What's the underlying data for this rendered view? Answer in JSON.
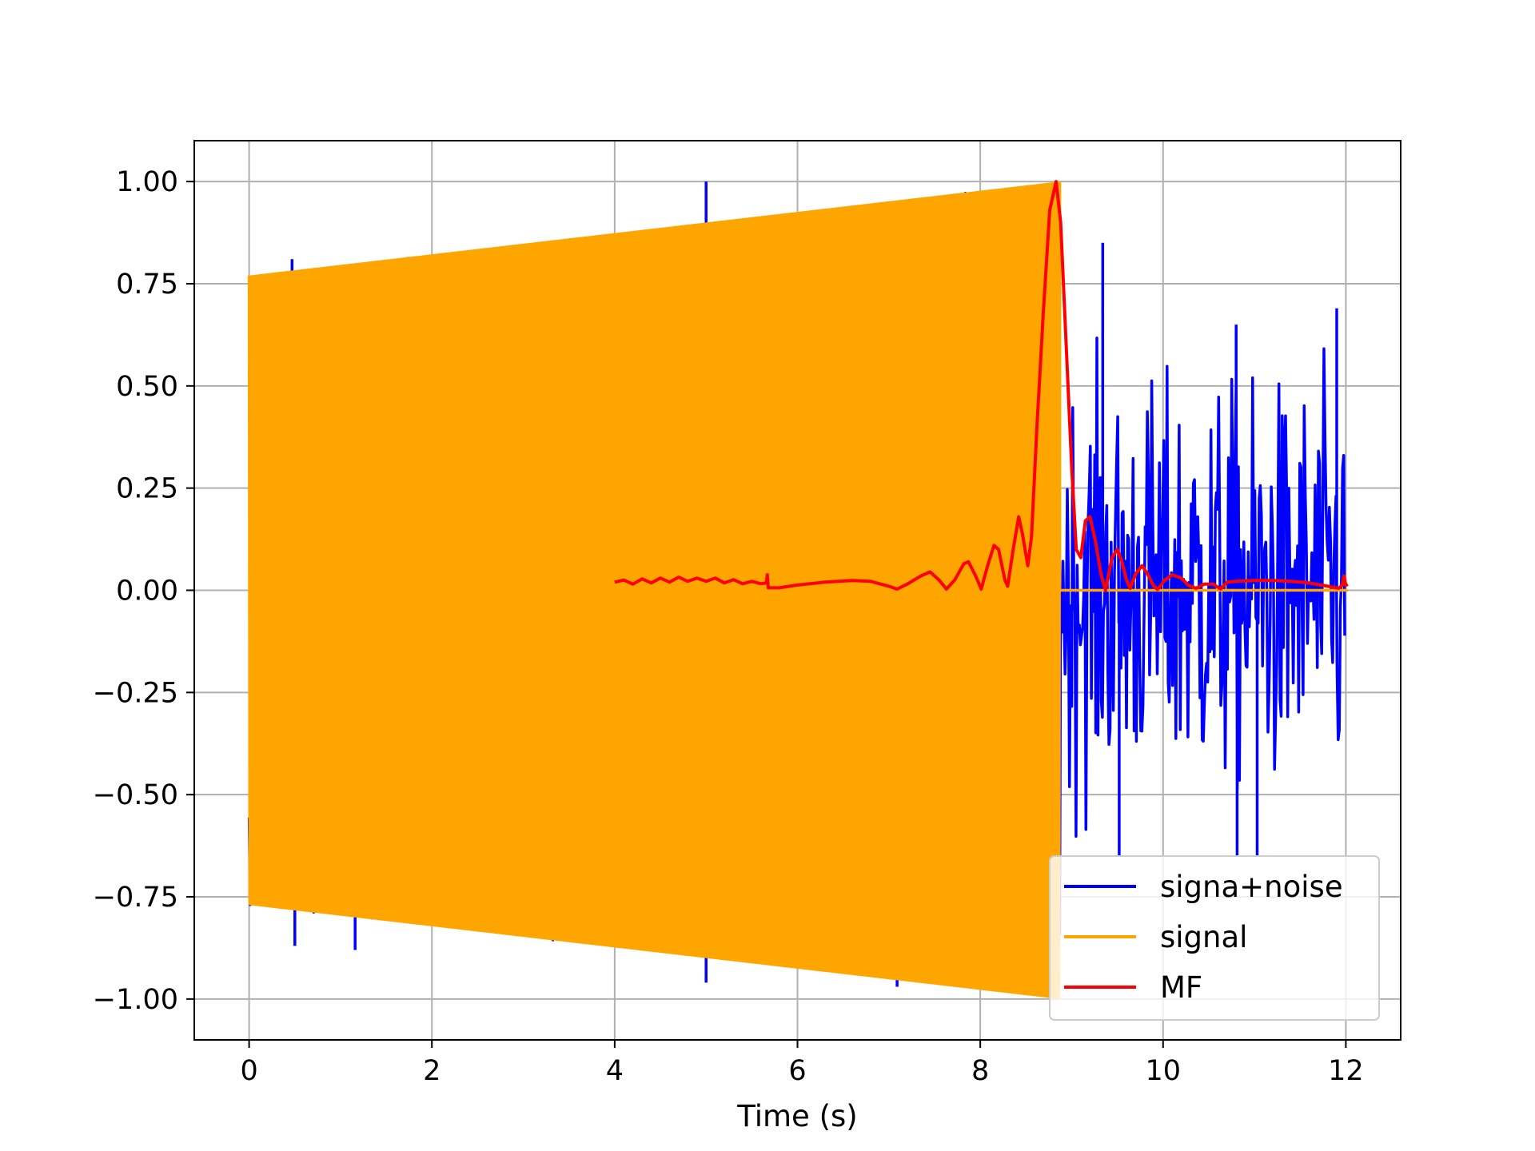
{
  "chart_data": {
    "type": "line",
    "xlabel": "Time (s)",
    "ylabel": "",
    "xlim": [
      -0.6,
      12.6
    ],
    "ylim": [
      -1.1,
      1.1
    ],
    "x_ticks": [
      0,
      2,
      4,
      6,
      8,
      10,
      12
    ],
    "x_tick_labels": [
      "0",
      "2",
      "4",
      "6",
      "8",
      "10",
      "12"
    ],
    "y_ticks": [
      1.0,
      0.75,
      0.5,
      0.25,
      0.0,
      -0.25,
      -0.5,
      -0.75,
      -1.0
    ],
    "y_tick_labels": [
      "1.00",
      "0.75",
      "0.50",
      "0.25",
      "0.00",
      "−0.25",
      "−0.50",
      "−0.75",
      "−1.00"
    ],
    "grid": true,
    "legend_position": "lower-right",
    "colors": {
      "noisy": "#0000ff",
      "signal": "#ffa500",
      "mf": "#ff0000",
      "grid": "#b0b0b0"
    },
    "series": [
      {
        "name": "signa+noise",
        "color": "#0000ff",
        "description_values": {
          "t_range": [
            0,
            12
          ],
          "noise_only_after": 8.87,
          "noise_envelope": [
            -0.72,
            0.72
          ],
          "spikes": [
            {
              "x": 0.47,
              "y": 0.81
            },
            {
              "x": 0.5,
              "y": -0.87
            },
            {
              "x": 1.16,
              "y": -0.88
            },
            {
              "x": 5.0,
              "y": 1.0
            },
            {
              "x": 5.0,
              "y": -0.96
            },
            {
              "x": 7.09,
              "y": -0.97
            },
            {
              "x": 9.34,
              "y": 0.85
            },
            {
              "x": 10.8,
              "y": 0.65
            },
            {
              "x": 11.9,
              "y": 0.69
            },
            {
              "x": 9.52,
              "y": -0.65
            },
            {
              "x": 10.81,
              "y": -0.65
            },
            {
              "x": 11.03,
              "y": -0.65
            }
          ]
        }
      },
      {
        "name": "signal",
        "color": "#ffa500",
        "description_values": {
          "t_start": 0,
          "t_end": 8.87,
          "amplitude_start": 0.77,
          "amplitude_end": 1.0,
          "after_end": 0.0
        }
      },
      {
        "name": "MF",
        "color": "#ff0000",
        "points": [
          [
            4.0,
            0.02
          ],
          [
            4.1,
            0.025
          ],
          [
            4.2,
            0.015
          ],
          [
            4.3,
            0.028
          ],
          [
            4.4,
            0.018
          ],
          [
            4.5,
            0.03
          ],
          [
            4.6,
            0.02
          ],
          [
            4.7,
            0.032
          ],
          [
            4.8,
            0.022
          ],
          [
            4.9,
            0.03
          ],
          [
            5.0,
            0.022
          ],
          [
            5.1,
            0.03
          ],
          [
            5.2,
            0.018
          ],
          [
            5.3,
            0.026
          ],
          [
            5.4,
            0.016
          ],
          [
            5.5,
            0.022
          ],
          [
            5.6,
            0.016
          ],
          [
            5.66,
            0.018
          ],
          [
            5.67,
            0.038
          ],
          [
            5.68,
            0.006
          ],
          [
            5.8,
            0.006
          ],
          [
            6.0,
            0.013
          ],
          [
            6.3,
            0.02
          ],
          [
            6.6,
            0.024
          ],
          [
            6.8,
            0.022
          ],
          [
            7.0,
            0.01
          ],
          [
            7.09,
            0.003
          ],
          [
            7.2,
            0.015
          ],
          [
            7.35,
            0.035
          ],
          [
            7.45,
            0.045
          ],
          [
            7.55,
            0.025
          ],
          [
            7.63,
            0.003
          ],
          [
            7.72,
            0.025
          ],
          [
            7.82,
            0.065
          ],
          [
            7.87,
            0.07
          ],
          [
            7.95,
            0.035
          ],
          [
            8.01,
            0.003
          ],
          [
            8.08,
            0.06
          ],
          [
            8.15,
            0.11
          ],
          [
            8.2,
            0.1
          ],
          [
            8.27,
            0.025
          ],
          [
            8.3,
            0.01
          ],
          [
            8.36,
            0.1
          ],
          [
            8.42,
            0.18
          ],
          [
            8.46,
            0.14
          ],
          [
            8.52,
            0.06
          ],
          [
            8.56,
            0.13
          ],
          [
            8.62,
            0.4
          ],
          [
            8.69,
            0.68
          ],
          [
            8.76,
            0.93
          ],
          [
            8.83,
            1.0
          ],
          [
            8.88,
            0.9
          ],
          [
            8.94,
            0.6
          ],
          [
            9.0,
            0.3
          ],
          [
            9.05,
            0.1
          ],
          [
            9.1,
            0.08
          ],
          [
            9.15,
            0.17
          ],
          [
            9.2,
            0.18
          ],
          [
            9.26,
            0.12
          ],
          [
            9.32,
            0.04
          ],
          [
            9.37,
            0.0
          ],
          [
            9.44,
            0.08
          ],
          [
            9.5,
            0.1
          ],
          [
            9.55,
            0.07
          ],
          [
            9.6,
            0.025
          ],
          [
            9.64,
            0.005
          ],
          [
            9.7,
            0.04
          ],
          [
            9.77,
            0.06
          ],
          [
            9.83,
            0.04
          ],
          [
            9.9,
            0.01
          ],
          [
            9.94,
            0.002
          ],
          [
            10.02,
            0.025
          ],
          [
            10.1,
            0.038
          ],
          [
            10.2,
            0.03
          ],
          [
            10.28,
            0.012
          ],
          [
            10.36,
            0.005
          ],
          [
            10.45,
            0.015
          ],
          [
            10.55,
            0.015
          ],
          [
            10.63,
            0.003
          ],
          [
            10.7,
            0.02
          ],
          [
            10.8,
            0.022
          ],
          [
            11.0,
            0.024
          ],
          [
            11.2,
            0.024
          ],
          [
            11.4,
            0.022
          ],
          [
            11.6,
            0.018
          ],
          [
            11.8,
            0.01
          ],
          [
            11.92,
            0.005
          ],
          [
            11.96,
            0.012
          ],
          [
            11.98,
            0.035
          ],
          [
            12.0,
            0.012
          ],
          [
            12.02,
            0.015
          ]
        ]
      }
    ]
  }
}
